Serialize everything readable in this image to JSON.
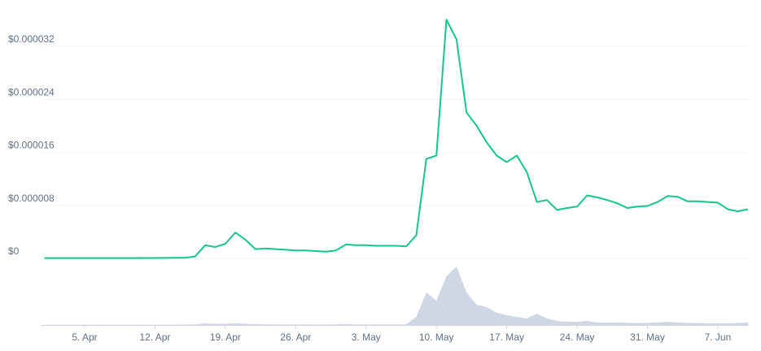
{
  "chart_data": [
    {
      "type": "line",
      "color": "#16c784",
      "grid": true,
      "categories": [
        null,
        null,
        null,
        null,
        "5. Apr",
        null,
        null,
        null,
        null,
        null,
        null,
        "12. Apr",
        null,
        null,
        null,
        null,
        null,
        null,
        "19. Apr",
        null,
        null,
        null,
        null,
        null,
        null,
        "26. Apr",
        null,
        null,
        null,
        null,
        null,
        null,
        "3. May",
        null,
        null,
        null,
        null,
        null,
        null,
        "10. May",
        null,
        null,
        null,
        null,
        null,
        null,
        "17. May",
        null,
        null,
        null,
        null,
        null,
        null,
        "24. May",
        null,
        null,
        null,
        null,
        null,
        null,
        "31. May",
        null,
        null,
        null,
        null,
        null,
        null,
        "7. Jun",
        null,
        null,
        null
      ],
      "values": [
        5e-08,
        5e-08,
        5e-08,
        5e-08,
        5e-08,
        5e-08,
        5e-08,
        5e-08,
        5e-08,
        5e-08,
        6e-08,
        6e-08,
        7e-08,
        8e-08,
        1e-07,
        3e-07,
        2e-06,
        1.7e-06,
        2.2e-06,
        3.9e-06,
        2.8e-06,
        1.4e-06,
        1.5e-06,
        1.4e-06,
        1.3e-06,
        1.2e-06,
        1.2e-06,
        1.1e-06,
        1e-06,
        1.2e-06,
        2.1e-06,
        2e-06,
        2e-06,
        1.9e-06,
        1.9e-06,
        1.9e-06,
        1.8e-06,
        3.5e-06,
        1.5e-05,
        1.55e-05,
        3.6e-05,
        3.3e-05,
        2.2e-05,
        2e-05,
        1.75e-05,
        1.55e-05,
        1.45e-05,
        1.55e-05,
        1.3e-05,
        8.5e-06,
        8.8e-06,
        7.3e-06,
        7.6e-06,
        7.8e-06,
        9.5e-06,
        9.2e-06,
        8.8e-06,
        8.3e-06,
        7.6e-06,
        7.8e-06,
        7.9e-06,
        8.5e-06,
        9.4e-06,
        9.3e-06,
        8.6e-06,
        8.6e-06,
        8.5e-06,
        8.4e-06,
        7.4e-06,
        7.1e-06,
        7.4e-06
      ],
      "ylim": [
        0,
        4e-05
      ],
      "yticks": [
        {
          "value": 0,
          "label": "$0"
        },
        {
          "value": 8e-06,
          "label": "$0.000008"
        },
        {
          "value": 1.6e-05,
          "label": "$0.000016"
        },
        {
          "value": 2.4e-05,
          "label": "$0.000024"
        },
        {
          "value": 3.2e-05,
          "label": "$0.000032"
        }
      ]
    },
    {
      "type": "area",
      "color": "#cfd6e4",
      "values": [
        0.3,
        0.3,
        0.3,
        0.3,
        0.3,
        0.3,
        0.3,
        0.3,
        0.3,
        0.3,
        0.3,
        0.3,
        0.4,
        0.4,
        0.5,
        0.8,
        2,
        1.5,
        1.5,
        2,
        1.5,
        1,
        0.8,
        0.7,
        0.6,
        0.6,
        0.6,
        0.5,
        0.5,
        0.8,
        1,
        0.8,
        0.8,
        0.7,
        0.7,
        0.7,
        0.8,
        10,
        40,
        30,
        60,
        72,
        40,
        25,
        22,
        15,
        12,
        10,
        8,
        14,
        8,
        5,
        4,
        4,
        5,
        3,
        3,
        3,
        2.5,
        2.5,
        2.5,
        3,
        4,
        3,
        2.5,
        2.5,
        2,
        2,
        2,
        2.5,
        3
      ],
      "ylim": [
        0,
        100
      ]
    }
  ]
}
